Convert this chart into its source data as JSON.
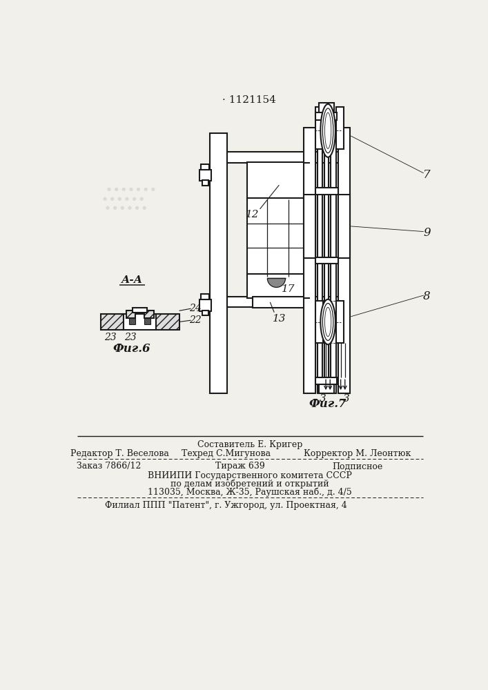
{
  "patent_number": "· 1121154",
  "bg_color": "#f2f0eb",
  "line_color": "#1a1a1a",
  "footer": {
    "line1_center": "Составитель Е. Кригер",
    "line2_left": "Редактор Т. Веселова",
    "line2_center": "Техред С.Мигунова",
    "line2_right": "Корректор М. Леонтюк",
    "line3_left": "Заказ 7866/12",
    "line3_center": "Тираж 639",
    "line3_right": "Подписное",
    "line4": "ВНИИПИ Государственного комитета СССР",
    "line5": "по делам изобретений и открытий",
    "line6": "113035, Москва, Ж-35, Раушская наб., д. 4/5",
    "line7": "Филиал ППП \"Патент\", г. Ужгород, ул. Проектная, 4"
  },
  "fig6_label": "Фиг.6",
  "fig7_label": "Фиг.7",
  "section_label": "А-А"
}
